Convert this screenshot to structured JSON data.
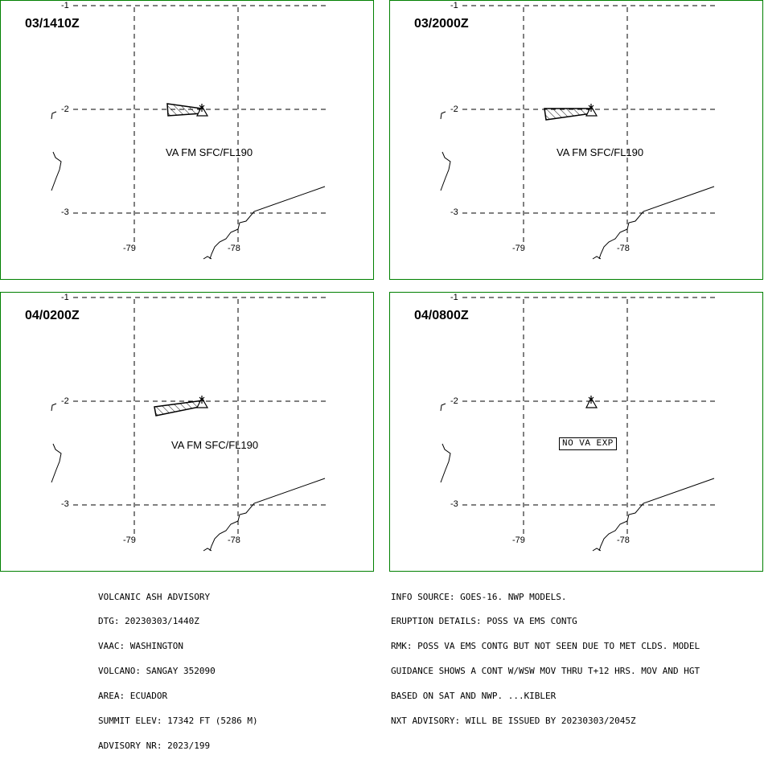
{
  "panels": [
    {
      "time": "03/1410Z",
      "ash_label": "VA FM SFC/FL190",
      "no_va_label": ""
    },
    {
      "time": "03/2000Z",
      "ash_label": "VA FM SFC/FL190",
      "no_va_label": ""
    },
    {
      "time": "04/0200Z",
      "ash_label": "VA FM SFC/FL190",
      "no_va_label": ""
    },
    {
      "time": "04/0800Z",
      "ash_label": "",
      "no_va_label": "NO VA EXP"
    }
  ],
  "axes": {
    "lat_labels": [
      "-1",
      "-2",
      "-3"
    ],
    "lon_labels": [
      "-79",
      "-78"
    ]
  },
  "colors": {
    "panel_border": "#008000",
    "lines": "#000000"
  },
  "icons": {
    "volcano": "triangle-volcano-icon",
    "ash_cloud": "hatched-polygon"
  },
  "advisory_left": [
    "VOLCANIC ASH ADVISORY",
    "DTG: 20230303/1440Z",
    "VAAC: WASHINGTON",
    "VOLCANO: SANGAY 352090",
    "AREA: ECUADOR",
    "SUMMIT ELEV: 17342 FT (5286 M)",
    "ADVISORY NR: 2023/199"
  ],
  "advisory_right": [
    "INFO SOURCE: GOES-16. NWP MODELS.",
    "ERUPTION DETAILS: POSS VA EMS CONTG",
    "RMK: POSS VA EMS CONTG BUT NOT SEEN DUE TO MET CLDS. MODEL",
    "GUIDANCE SHOWS A CONT W/WSW MOV THRU T+12 HRS. MOV AND HGT",
    "BASED ON SAT AND NWP. ...KIBLER",
    "NXT ADVISORY: WILL BE ISSUED BY 20230303/2045Z"
  ]
}
